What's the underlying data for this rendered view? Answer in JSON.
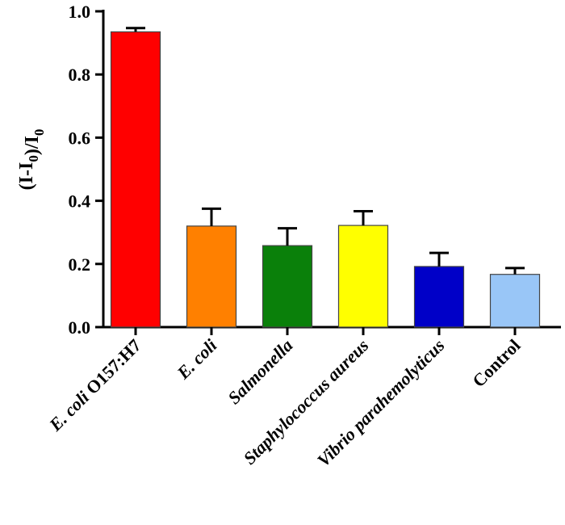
{
  "chart_data": {
    "type": "bar",
    "ylabel": "(I-I0)/I0",
    "ylim": [
      0,
      1.0
    ],
    "yticks": [
      "0.0",
      "0.2",
      "0.4",
      "0.6",
      "0.8",
      "1.0"
    ],
    "grid": false,
    "categories": [
      {
        "label": "E. coli O157:H7",
        "italic_part": "E. coli",
        "plain_part": " O157:H7",
        "value": 0.935,
        "error": 0.012,
        "color": "#ff0000"
      },
      {
        "label": "E. coli",
        "italic_part": "E. coli",
        "plain_part": "",
        "value": 0.32,
        "error": 0.055,
        "color": "#ff8000"
      },
      {
        "label": "Salmonella",
        "italic_part": "Salmonella",
        "plain_part": "",
        "value": 0.258,
        "error": 0.055,
        "color": "#0a800a"
      },
      {
        "label": "Staphylococcus aureus",
        "italic_part": "Staphylococcus aureus",
        "plain_part": "",
        "value": 0.322,
        "error": 0.045,
        "color": "#ffff00"
      },
      {
        "label": "Vibrio parahemolyticus",
        "italic_part": "Vibrio parahemolyticus",
        "plain_part": "",
        "value": 0.192,
        "error": 0.043,
        "color": "#0000c8"
      },
      {
        "label": "Control",
        "italic_part": "",
        "plain_part": "Control",
        "value": 0.167,
        "error": 0.02,
        "color": "#99c6f7"
      }
    ]
  }
}
